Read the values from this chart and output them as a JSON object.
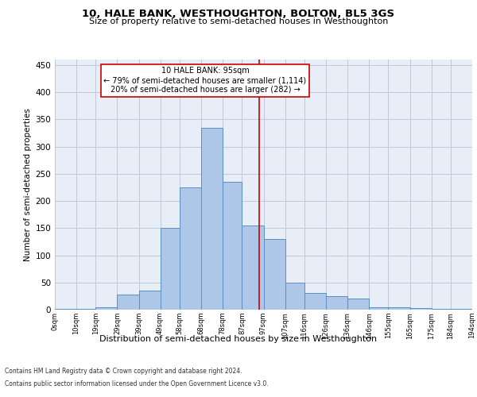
{
  "title": "10, HALE BANK, WESTHOUGHTON, BOLTON, BL5 3GS",
  "subtitle": "Size of property relative to semi-detached houses in Westhoughton",
  "xlabel": "Distribution of semi-detached houses by size in Westhoughton",
  "ylabel": "Number of semi-detached properties",
  "footer_line1": "Contains HM Land Registry data © Crown copyright and database right 2024.",
  "footer_line2": "Contains public sector information licensed under the Open Government Licence v3.0.",
  "annotation_title": "10 HALE BANK: 95sqm",
  "annotation_line1": "← 79% of semi-detached houses are smaller (1,114)",
  "annotation_line2": "20% of semi-detached houses are larger (282) →",
  "property_size": 95,
  "bar_edges": [
    0,
    10,
    19,
    29,
    39,
    49,
    58,
    68,
    78,
    87,
    97,
    107,
    116,
    126,
    136,
    146,
    155,
    165,
    175,
    184,
    194
  ],
  "bar_heights": [
    2,
    2,
    5,
    28,
    35,
    150,
    225,
    335,
    235,
    155,
    130,
    50,
    30,
    25,
    20,
    5,
    5,
    3,
    2,
    2
  ],
  "bar_color": "#aec6e8",
  "bar_edge_color": "#5a8fc0",
  "vline_color": "#cc0000",
  "vline_x": 95,
  "box_edge_color": "#cc0000",
  "grid_color": "#c0c8d8",
  "background_color": "#e8eef8",
  "ylim": [
    0,
    460
  ],
  "yticks": [
    0,
    50,
    100,
    150,
    200,
    250,
    300,
    350,
    400,
    450
  ],
  "tick_labels": [
    "0sqm",
    "10sqm",
    "19sqm",
    "29sqm",
    "39sqm",
    "49sqm",
    "58sqm",
    "68sqm",
    "78sqm",
    "87sqm",
    "97sqm",
    "107sqm",
    "116sqm",
    "126sqm",
    "136sqm",
    "146sqm",
    "155sqm",
    "165sqm",
    "175sqm",
    "184sqm",
    "194sqm"
  ]
}
